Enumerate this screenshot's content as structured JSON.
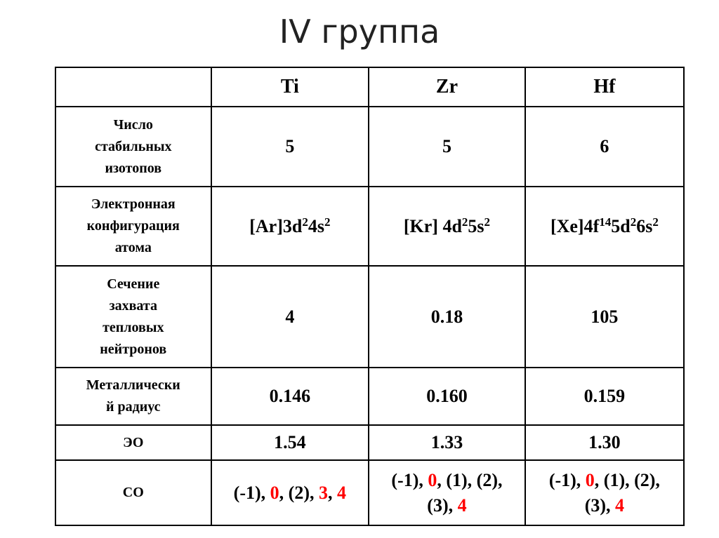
{
  "title": "IV группа",
  "table": {
    "columns": [
      "Ti",
      "Zr",
      "Hf"
    ],
    "rows": [
      {
        "label": [
          "Число",
          "стабильных",
          "изотопов"
        ],
        "cells": [
          "5",
          "5",
          "6"
        ]
      },
      {
        "label": [
          "Электронная",
          "конфигурация",
          "атома"
        ],
        "cells": [
          [
            {
              "text": "[Ar]3d"
            },
            {
              "text": "2",
              "sup": true
            },
            {
              "text": "4s"
            },
            {
              "text": "2",
              "sup": true
            }
          ],
          [
            {
              "text": "[Kr] 4d"
            },
            {
              "text": "2",
              "sup": true
            },
            {
              "text": "5s"
            },
            {
              "text": "2",
              "sup": true
            }
          ],
          [
            {
              "text": "[Xe]4f"
            },
            {
              "text": "14",
              "sup": true
            },
            {
              "text": "5d"
            },
            {
              "text": "2",
              "sup": true
            },
            {
              "text": "6s"
            },
            {
              "text": "2",
              "sup": true
            }
          ]
        ]
      },
      {
        "label": [
          "Сечение",
          "захвата",
          "тепловых",
          "нейтронов"
        ],
        "cells": [
          "4",
          "0.18",
          "105"
        ]
      },
      {
        "label": [
          "Металлически",
          "й радиус"
        ],
        "cells": [
          "0.146",
          "0.160",
          "0.159"
        ]
      },
      {
        "label": [
          "ЭО"
        ],
        "cells": [
          "1.54",
          "1.33",
          "1.30"
        ]
      },
      {
        "label": [
          "СО"
        ],
        "cells": [
          [
            {
              "text": "(-1), "
            },
            {
              "text": "0",
              "color": "#ff0000"
            },
            {
              "text": ", (2), "
            },
            {
              "text": "3",
              "color": "#ff0000"
            },
            {
              "text": ", "
            },
            {
              "text": "4",
              "color": "#ff0000"
            }
          ],
          [
            {
              "text": "(-1), "
            },
            {
              "text": "0",
              "color": "#ff0000"
            },
            {
              "text": ", (1), (2), (3), "
            },
            {
              "text": "4",
              "color": "#ff0000"
            }
          ],
          [
            {
              "text": "(-1), "
            },
            {
              "text": "0",
              "color": "#ff0000"
            },
            {
              "text": ", (1), (2), (3), "
            },
            {
              "text": "4",
              "color": "#ff0000"
            }
          ]
        ]
      }
    ]
  }
}
